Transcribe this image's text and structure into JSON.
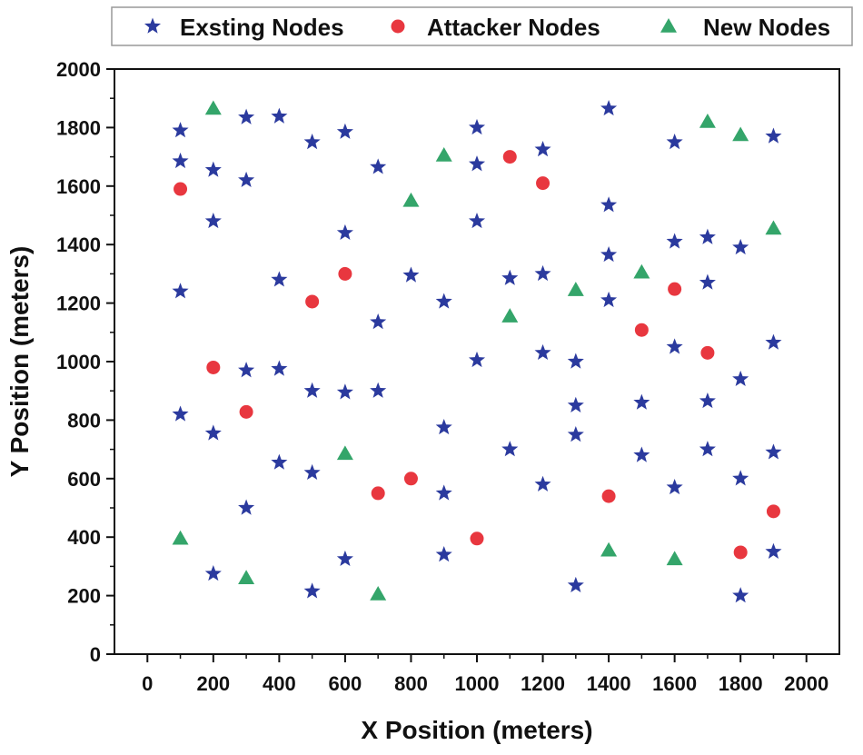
{
  "chart_data": {
    "type": "scatter",
    "xlabel": "X Position (meters)",
    "ylabel": "Y Position (meters)",
    "xlim": [
      -100,
      2100
    ],
    "ylim": [
      0,
      2000
    ],
    "xticks": [
      0,
      200,
      400,
      600,
      800,
      1000,
      1200,
      1400,
      1600,
      1800,
      2000
    ],
    "yticks": [
      0,
      200,
      400,
      600,
      800,
      1000,
      1200,
      1400,
      1600,
      1800,
      2000
    ],
    "grid": false,
    "legend_position": "top",
    "series": [
      {
        "name": "Exsting Nodes",
        "marker": "star",
        "color": "#2b3a9e",
        "points": [
          [
            100,
            1790
          ],
          [
            100,
            1685
          ],
          [
            100,
            1240
          ],
          [
            100,
            820
          ],
          [
            200,
            1655
          ],
          [
            200,
            1480
          ],
          [
            200,
            755
          ],
          [
            200,
            275
          ],
          [
            300,
            1835
          ],
          [
            300,
            1620
          ],
          [
            300,
            970
          ],
          [
            300,
            500
          ],
          [
            400,
            1838
          ],
          [
            400,
            1280
          ],
          [
            400,
            975
          ],
          [
            400,
            655
          ],
          [
            500,
            1750
          ],
          [
            500,
            900
          ],
          [
            500,
            620
          ],
          [
            500,
            215
          ],
          [
            600,
            1785
          ],
          [
            600,
            1440
          ],
          [
            600,
            895
          ],
          [
            600,
            325
          ],
          [
            700,
            1665
          ],
          [
            700,
            1135
          ],
          [
            700,
            900
          ],
          [
            800,
            1295
          ],
          [
            900,
            1205
          ],
          [
            900,
            775
          ],
          [
            900,
            550
          ],
          [
            900,
            340
          ],
          [
            1000,
            1800
          ],
          [
            1000,
            1675
          ],
          [
            1000,
            1480
          ],
          [
            1000,
            1005
          ],
          [
            1100,
            1285
          ],
          [
            1100,
            700
          ],
          [
            1200,
            1725
          ],
          [
            1200,
            1300
          ],
          [
            1200,
            1030
          ],
          [
            1200,
            580
          ],
          [
            1300,
            1000
          ],
          [
            1300,
            850
          ],
          [
            1300,
            750
          ],
          [
            1300,
            235
          ],
          [
            1400,
            1865
          ],
          [
            1400,
            1535
          ],
          [
            1400,
            1365
          ],
          [
            1400,
            1210
          ],
          [
            1500,
            860
          ],
          [
            1500,
            680
          ],
          [
            1600,
            1750
          ],
          [
            1600,
            1410
          ],
          [
            1600,
            1050
          ],
          [
            1600,
            570
          ],
          [
            1700,
            1425
          ],
          [
            1700,
            1270
          ],
          [
            1700,
            865
          ],
          [
            1700,
            700
          ],
          [
            1800,
            1390
          ],
          [
            1800,
            940
          ],
          [
            1800,
            600
          ],
          [
            1800,
            200
          ],
          [
            1900,
            1770
          ],
          [
            1900,
            1065
          ],
          [
            1900,
            690
          ],
          [
            1900,
            350
          ]
        ]
      },
      {
        "name": "Attacker Nodes",
        "marker": "circle",
        "color": "#e8373f",
        "points": [
          [
            100,
            1590
          ],
          [
            200,
            980
          ],
          [
            300,
            828
          ],
          [
            500,
            1205
          ],
          [
            600,
            1300
          ],
          [
            700,
            550
          ],
          [
            800,
            600
          ],
          [
            1000,
            395
          ],
          [
            1100,
            1700
          ],
          [
            1200,
            1610
          ],
          [
            1400,
            540
          ],
          [
            1500,
            1108
          ],
          [
            1600,
            1248
          ],
          [
            1700,
            1030
          ],
          [
            1800,
            348
          ],
          [
            1900,
            488
          ]
        ]
      },
      {
        "name": "New Nodes",
        "marker": "triangle",
        "color": "#34a56a",
        "points": [
          [
            200,
            1865
          ],
          [
            100,
            395
          ],
          [
            300,
            260
          ],
          [
            600,
            685
          ],
          [
            700,
            205
          ],
          [
            800,
            1550
          ],
          [
            900,
            1705
          ],
          [
            1100,
            1155
          ],
          [
            1300,
            1245
          ],
          [
            1400,
            355
          ],
          [
            1500,
            1305
          ],
          [
            1600,
            325
          ],
          [
            1700,
            1820
          ],
          [
            1800,
            1775
          ],
          [
            1900,
            1455
          ]
        ]
      }
    ]
  }
}
